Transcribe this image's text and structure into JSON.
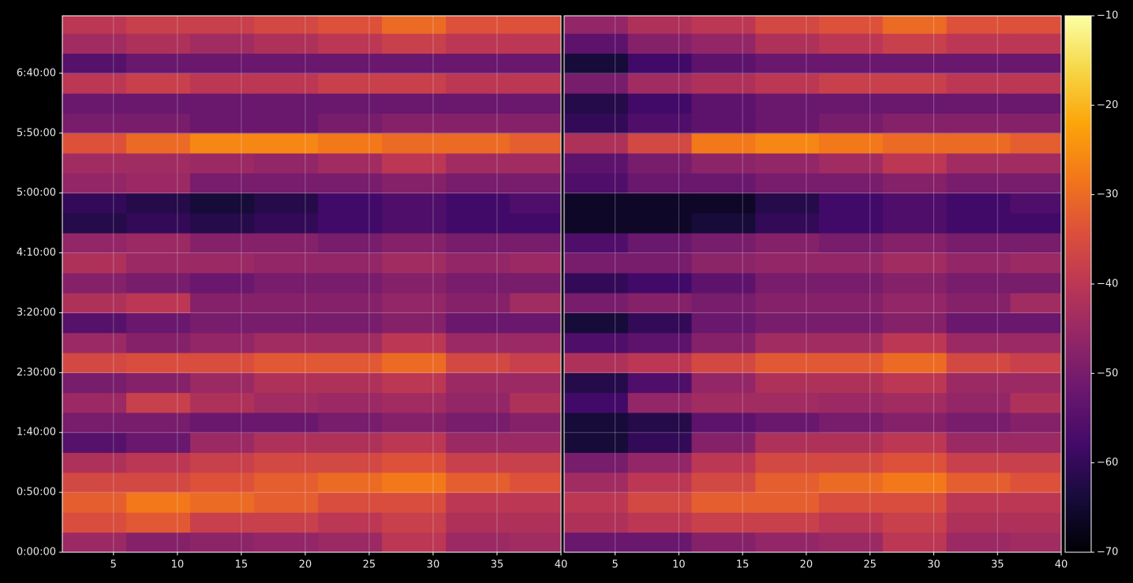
{
  "chart_data": [
    {
      "type": "heatmap",
      "x_bins": [
        1,
        6,
        11,
        16,
        21,
        26,
        31,
        36,
        40
      ],
      "y_bins": [
        0,
        1000,
        2000,
        3000,
        4000,
        5000,
        6000,
        7000,
        8000,
        9000,
        10000,
        11000,
        12000,
        13000,
        14000,
        15000,
        16000,
        17000,
        18000,
        19000,
        20000,
        21000,
        22000,
        23000,
        24000,
        25000,
        26000,
        26880
      ],
      "values": [
        [
          -45,
          -48,
          -47,
          -46,
          -45,
          -40,
          -45,
          -44
        ],
        [
          -35,
          -33,
          -38,
          -38,
          -40,
          -38,
          -42,
          -42
        ],
        [
          -32,
          -28,
          -30,
          -32,
          -35,
          -35,
          -40,
          -40
        ],
        [
          -36,
          -36,
          -34,
          -32,
          -30,
          -28,
          -32,
          -34
        ],
        [
          -42,
          -40,
          -38,
          -36,
          -36,
          -34,
          -38,
          -38
        ],
        [
          -55,
          -52,
          -45,
          -42,
          -42,
          -40,
          -45,
          -45
        ],
        [
          -50,
          -50,
          -52,
          -52,
          -50,
          -48,
          -50,
          -48
        ],
        [
          -45,
          -38,
          -42,
          -44,
          -45,
          -44,
          -46,
          -42
        ],
        [
          -50,
          -48,
          -45,
          -42,
          -42,
          -40,
          -45,
          -45
        ],
        [
          -36,
          -35,
          -35,
          -33,
          -33,
          -30,
          -36,
          -38
        ],
        [
          -45,
          -48,
          -46,
          -44,
          -44,
          -40,
          -45,
          -45
        ],
        [
          -55,
          -52,
          -50,
          -50,
          -50,
          -48,
          -52,
          -52
        ],
        [
          -42,
          -40,
          -48,
          -48,
          -48,
          -46,
          -48,
          -44
        ],
        [
          -48,
          -50,
          -52,
          -50,
          -50,
          -48,
          -50,
          -50
        ],
        [
          -42,
          -45,
          -45,
          -46,
          -46,
          -44,
          -46,
          -45
        ],
        [
          -46,
          -45,
          -48,
          -48,
          -50,
          -48,
          -50,
          -50
        ],
        [
          -62,
          -60,
          -62,
          -60,
          -58,
          -56,
          -58,
          -58
        ],
        [
          -60,
          -62,
          -64,
          -62,
          -58,
          -56,
          -58,
          -56
        ],
        [
          -46,
          -45,
          -50,
          -50,
          -50,
          -48,
          -50,
          -50
        ],
        [
          -44,
          -44,
          -45,
          -46,
          -44,
          -40,
          -44,
          -44
        ],
        [
          -34,
          -30,
          -26,
          -26,
          -28,
          -30,
          -30,
          -32
        ],
        [
          -50,
          -50,
          -52,
          -52,
          -50,
          -48,
          -48,
          -48
        ],
        [
          -52,
          -52,
          -52,
          -52,
          -52,
          -52,
          -52,
          -52
        ],
        [
          -40,
          -38,
          -40,
          -40,
          -38,
          -38,
          -40,
          -40
        ],
        [
          -55,
          -52,
          -52,
          -52,
          -52,
          -52,
          -52,
          -52
        ],
        [
          -44,
          -42,
          -44,
          -42,
          -40,
          -38,
          -40,
          -40
        ],
        [
          -40,
          -38,
          -38,
          -36,
          -34,
          -30,
          -34,
          -34
        ]
      ],
      "xlim": [
        1,
        40
      ],
      "xticks": [
        5,
        10,
        15,
        20,
        25,
        30,
        35,
        40
      ],
      "ylim": [
        0,
        26880
      ],
      "yticks": [
        {
          "value": 0,
          "label": "0:00:00"
        },
        {
          "value": 3000,
          "label": "0:50:00"
        },
        {
          "value": 6000,
          "label": "1:40:00"
        },
        {
          "value": 9000,
          "label": "2:30:00"
        },
        {
          "value": 12000,
          "label": "3:20:00"
        },
        {
          "value": 15000,
          "label": "4:10:00"
        },
        {
          "value": 18000,
          "label": "5:00:00"
        },
        {
          "value": 21000,
          "label": "5:50:00"
        },
        {
          "value": 24000,
          "label": "6:40:00"
        }
      ],
      "grid": true
    },
    {
      "type": "heatmap",
      "x_bins": [
        1,
        6,
        11,
        16,
        21,
        26,
        31,
        36,
        40
      ],
      "y_bins": [
        0,
        1000,
        2000,
        3000,
        4000,
        5000,
        6000,
        7000,
        8000,
        9000,
        10000,
        11000,
        12000,
        13000,
        14000,
        15000,
        16000,
        17000,
        18000,
        19000,
        20000,
        21000,
        22000,
        23000,
        24000,
        25000,
        26000,
        26880
      ],
      "values": [
        [
          -52,
          -52,
          -48,
          -46,
          -45,
          -40,
          -45,
          -44
        ],
        [
          -42,
          -40,
          -38,
          -38,
          -40,
          -38,
          -42,
          -42
        ],
        [
          -40,
          -36,
          -32,
          -32,
          -35,
          -35,
          -40,
          -40
        ],
        [
          -44,
          -40,
          -36,
          -32,
          -30,
          -28,
          -32,
          -34
        ],
        [
          -50,
          -46,
          -40,
          -36,
          -36,
          -34,
          -38,
          -38
        ],
        [
          -64,
          -60,
          -48,
          -42,
          -42,
          -40,
          -45,
          -45
        ],
        [
          -64,
          -62,
          -54,
          -52,
          -50,
          -48,
          -50,
          -48
        ],
        [
          -58,
          -46,
          -44,
          -44,
          -45,
          -44,
          -46,
          -42
        ],
        [
          -62,
          -56,
          -46,
          -42,
          -42,
          -40,
          -45,
          -45
        ],
        [
          -42,
          -40,
          -36,
          -33,
          -33,
          -30,
          -36,
          -38
        ],
        [
          -56,
          -54,
          -48,
          -44,
          -44,
          -40,
          -45,
          -45
        ],
        [
          -64,
          -60,
          -52,
          -50,
          -50,
          -48,
          -52,
          -52
        ],
        [
          -50,
          -48,
          -50,
          -48,
          -48,
          -46,
          -48,
          -44
        ],
        [
          -60,
          -58,
          -54,
          -50,
          -50,
          -48,
          -50,
          -50
        ],
        [
          -50,
          -50,
          -47,
          -46,
          -46,
          -44,
          -46,
          -45
        ],
        [
          -56,
          -52,
          -50,
          -48,
          -50,
          -48,
          -50,
          -50
        ],
        [
          -66,
          -66,
          -64,
          -60,
          -58,
          -56,
          -58,
          -58
        ],
        [
          -66,
          -66,
          -66,
          -62,
          -58,
          -56,
          -58,
          -56
        ],
        [
          -56,
          -52,
          -52,
          -50,
          -50,
          -48,
          -50,
          -50
        ],
        [
          -54,
          -50,
          -47,
          -46,
          -44,
          -40,
          -44,
          -44
        ],
        [
          -42,
          -36,
          -28,
          -26,
          -28,
          -30,
          -30,
          -32
        ],
        [
          -60,
          -56,
          -54,
          -52,
          -50,
          -48,
          -48,
          -48
        ],
        [
          -62,
          -58,
          -54,
          -52,
          -52,
          -52,
          -52,
          -52
        ],
        [
          -50,
          -44,
          -42,
          -40,
          -38,
          -38,
          -40,
          -40
        ],
        [
          -64,
          -58,
          -54,
          -52,
          -52,
          -52,
          -52,
          -52
        ],
        [
          -54,
          -48,
          -46,
          -42,
          -40,
          -38,
          -40,
          -40
        ],
        [
          -46,
          -42,
          -40,
          -36,
          -34,
          -30,
          -34,
          -34
        ]
      ],
      "xlim": [
        1,
        40
      ],
      "xticks": [
        5,
        10,
        15,
        20,
        25,
        30,
        35,
        40
      ],
      "ylim": [
        0,
        26880
      ],
      "grid": true,
      "colormap": "inferno",
      "clim": [
        -70,
        -10
      ],
      "cticks": [
        {
          "value": -10,
          "label": "−10"
        },
        {
          "value": -20,
          "label": "−20"
        },
        {
          "value": -30,
          "label": "−30"
        },
        {
          "value": -40,
          "label": "−40"
        },
        {
          "value": -50,
          "label": "−50"
        },
        {
          "value": -60,
          "label": "−60"
        },
        {
          "value": -70,
          "label": "−70"
        }
      ]
    }
  ]
}
